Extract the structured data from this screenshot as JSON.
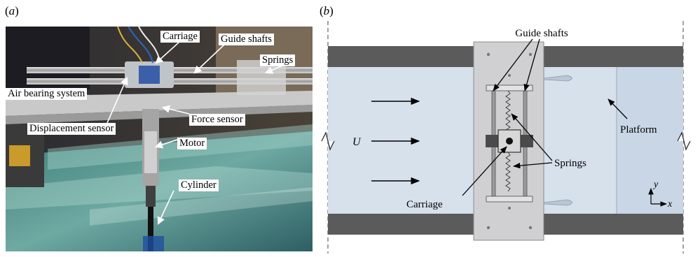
{
  "panel_a": {
    "label_letter": "a",
    "callouts": {
      "carriage": "Carriage",
      "guide_shafts": "Guide shafts",
      "springs": "Springs",
      "air_bearing": "Air bearing system",
      "displacement_sensor": "Displacement sensor",
      "force_sensor": "Force sensor",
      "motor": "Motor",
      "cylinder": "Cylinder"
    }
  },
  "panel_b": {
    "label_letter": "b",
    "labels": {
      "guide_shafts": "Guide shafts",
      "platform": "Platform",
      "flow": "U",
      "springs": "Springs",
      "carriage": "Carriage",
      "axis_y": "y",
      "axis_x": "x"
    }
  }
}
